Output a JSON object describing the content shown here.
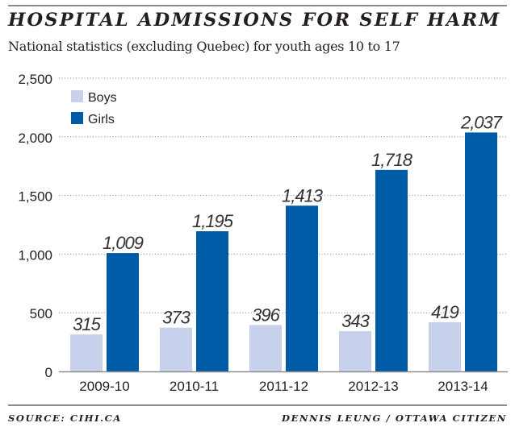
{
  "header": {
    "title": "HOSPITAL ADMISSIONS FOR SELF HARM",
    "subtitle": "National statistics (excluding Quebec) for youth ages 10 to 17"
  },
  "footer": {
    "source": "SOURCE: CIHI.CA",
    "credit": "DENNIS LEUNG / OTTAWA CITIZEN"
  },
  "colors": {
    "boys": "#c8d1ec",
    "girls": "#005ba6",
    "grid": "#8a8a8a",
    "axis": "#8c8c8c",
    "text": "#231f20"
  },
  "chart_data": {
    "type": "bar",
    "title": "HOSPITAL ADMISSIONS FOR SELF HARM",
    "subtitle": "National statistics (excluding Quebec) for youth ages 10 to 17",
    "xlabel": "",
    "ylabel": "",
    "categories": [
      "2009-10",
      "2010-11",
      "2011-12",
      "2012-13",
      "2013-14"
    ],
    "series": [
      {
        "name": "Boys",
        "values": [
          315,
          373,
          396,
          343,
          419
        ],
        "labels": [
          "315",
          "373",
          "396",
          "343",
          "419"
        ]
      },
      {
        "name": "Girls",
        "values": [
          1009,
          1195,
          1413,
          1718,
          2037
        ],
        "labels": [
          "1,009",
          "1,195",
          "1,413",
          "1,718",
          "2,037"
        ]
      }
    ],
    "ylim": [
      0,
      2500
    ],
    "yticks": [
      0,
      500,
      1000,
      1500,
      2000,
      2500
    ],
    "ytick_labels": [
      "0",
      "500",
      "1,000",
      "1,500",
      "2,000",
      "2,500"
    ],
    "grid": true,
    "legend": {
      "position": "top-left",
      "entries": [
        "Boys",
        "Girls"
      ]
    }
  }
}
